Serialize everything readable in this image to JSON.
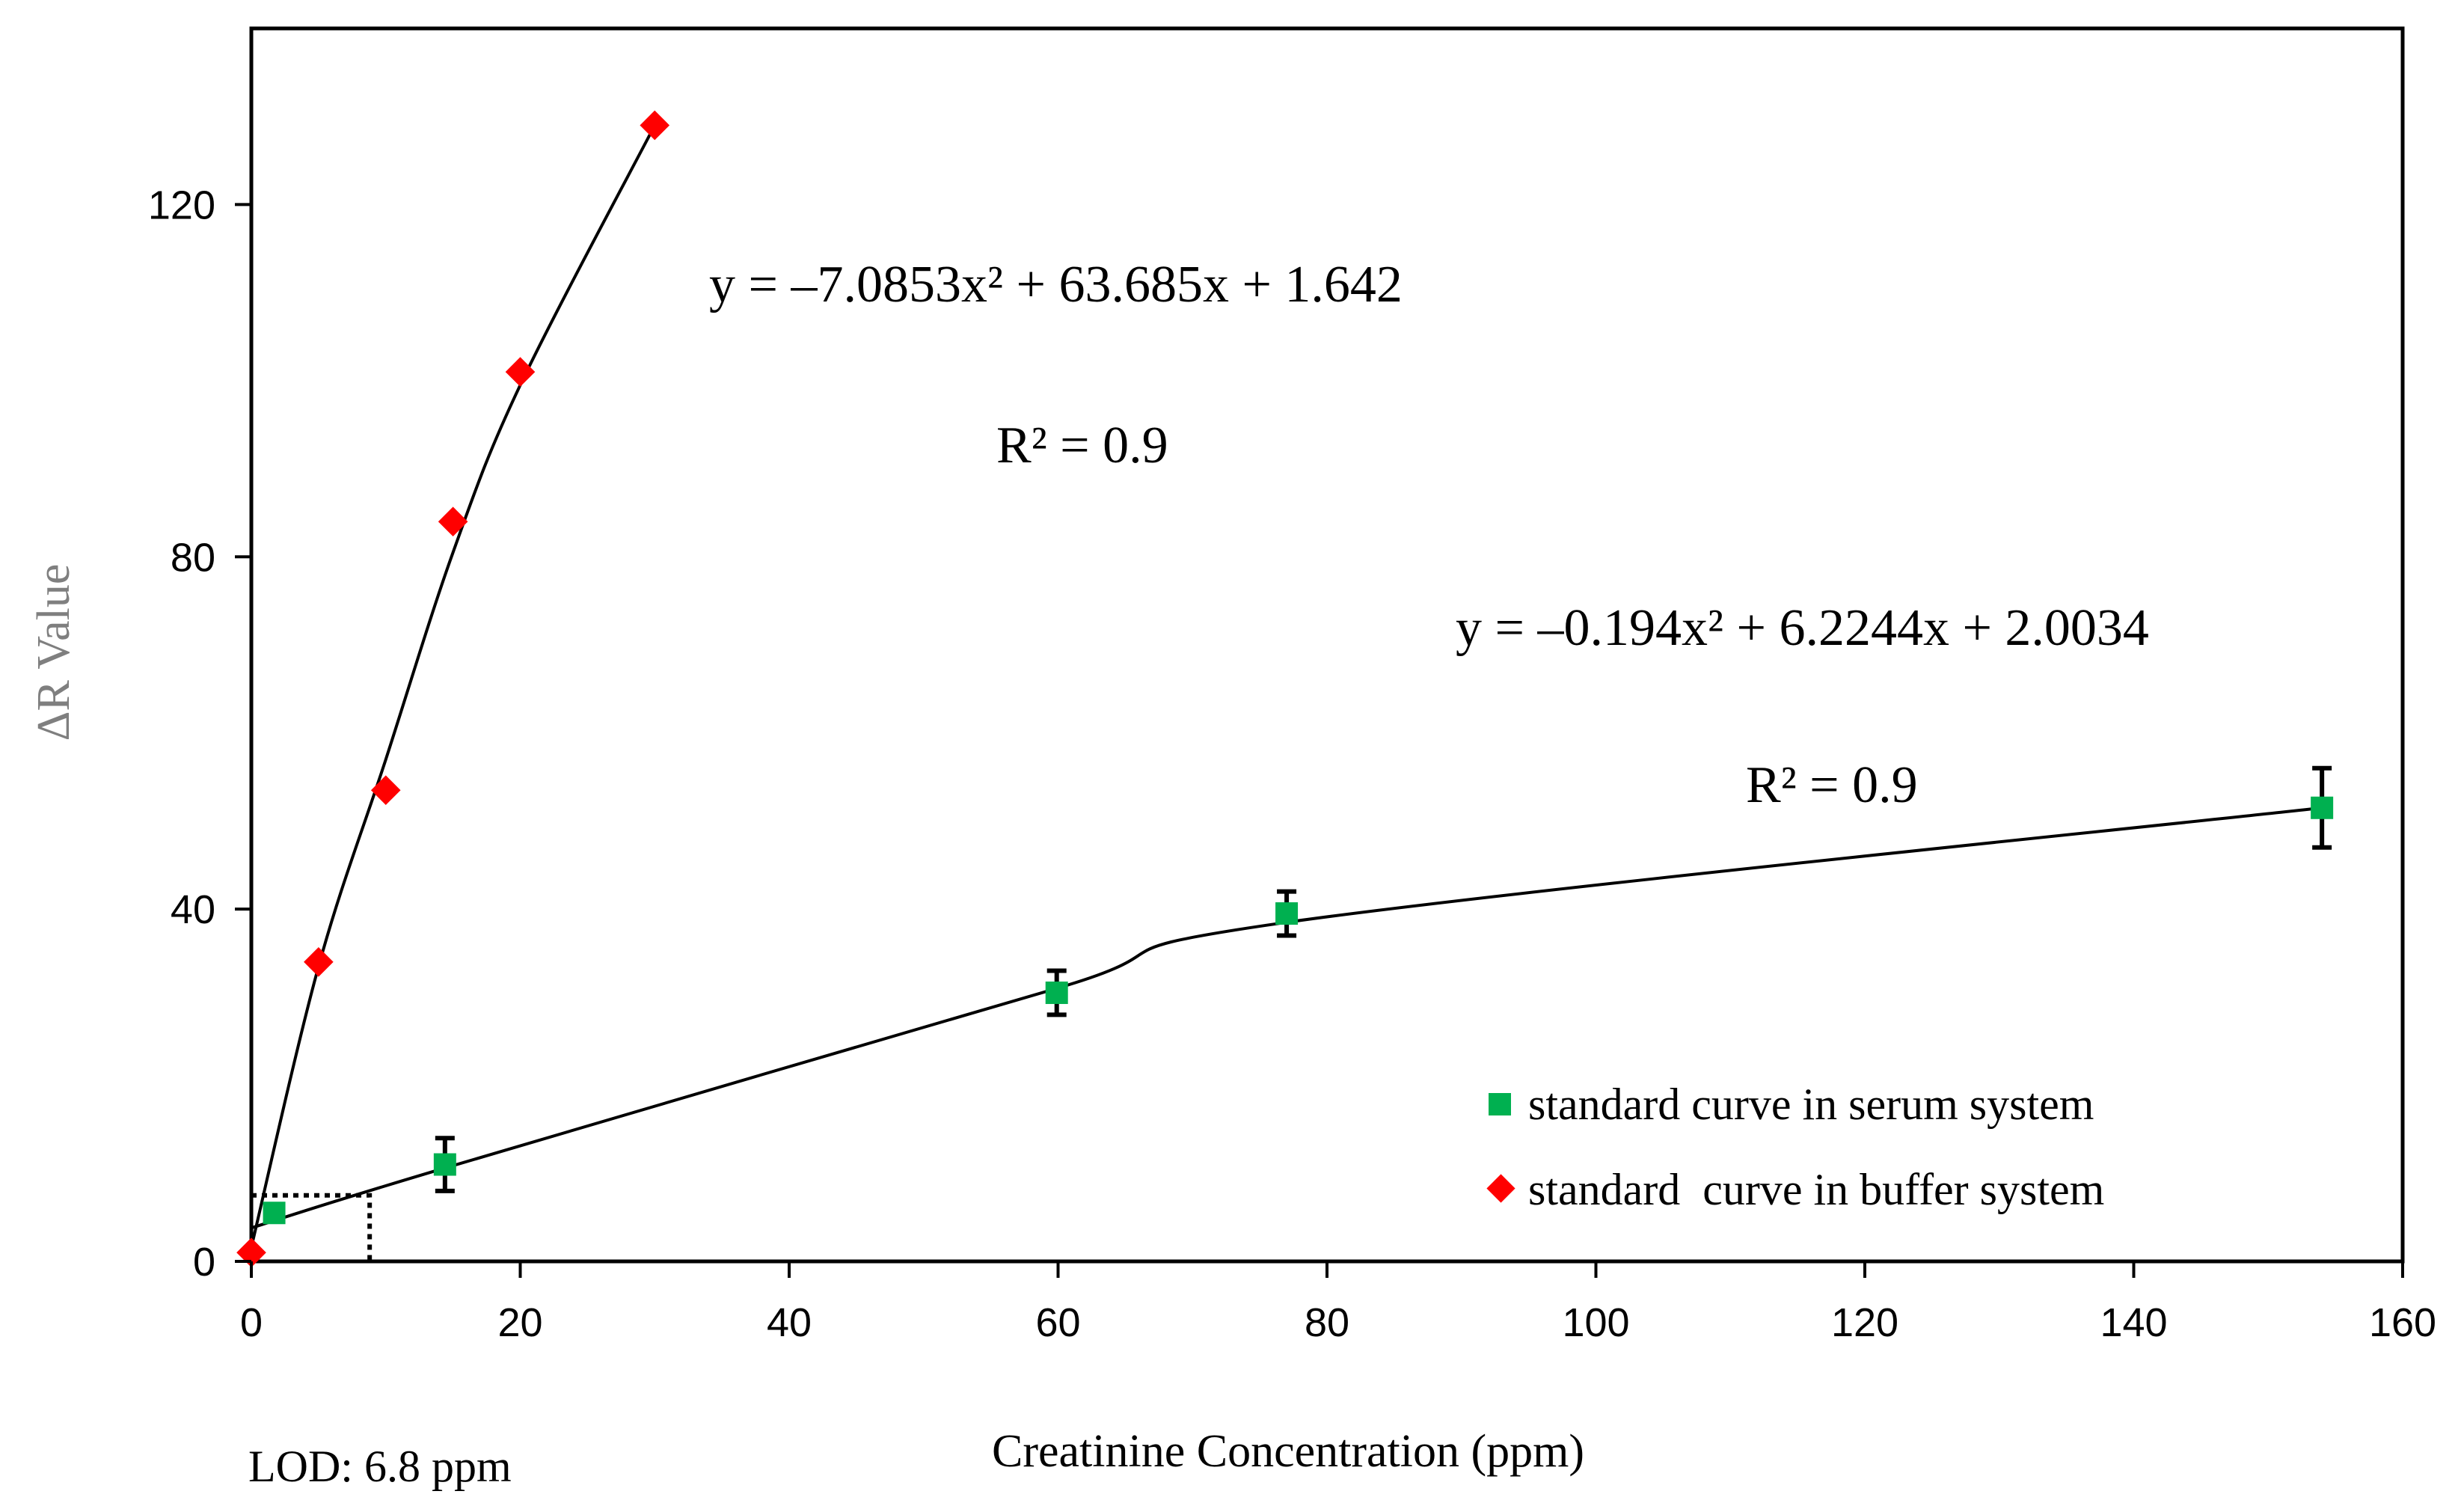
{
  "chart_data": {
    "type": "scatter",
    "title": "",
    "xlabel": "Creatinine Concentration (ppm)",
    "ylabel": "ΔR Value",
    "xlim": [
      0,
      160
    ],
    "ylim": [
      0,
      140
    ],
    "x_ticks": [
      "0",
      "20",
      "40",
      "60",
      "80",
      "100",
      "120",
      "140",
      "160"
    ],
    "y_ticks": [
      "0",
      "40",
      "80",
      "120"
    ],
    "legend_position": "bottom-right",
    "series": [
      {
        "name": "standard curve in serum system",
        "marker": "square",
        "color": "#00b050",
        "x": [
          1.7,
          14.4,
          59.9,
          77.0,
          154.0
        ],
        "y": [
          5.5,
          11.0,
          30.5,
          39.5,
          51.5
        ],
        "error": [
          0,
          3.0,
          2.5,
          2.5,
          4.5
        ],
        "fit": {
          "equation": "y = –0.194x² + 6.2244x + 2.0034",
          "r2": "R² = 0.9",
          "x_range": [
            0,
            154
          ]
        }
      },
      {
        "name": "standard  curve in buffer system",
        "marker": "diamond",
        "color": "#ff0000",
        "x": [
          0,
          5,
          10,
          15,
          20,
          30
        ],
        "y": [
          1.0,
          34.0,
          53.5,
          84.0,
          101.0,
          129.0
        ],
        "fit": {
          "equation": "y = –7.0853x² + 63.685x + 1.642",
          "r2": "R² = 0.9",
          "x_range": [
            0,
            30
          ]
        }
      }
    ],
    "lod_box": {
      "x": 8.8,
      "y": 7.5
    },
    "annotations": [
      "LOD: 6.8 ppm"
    ]
  }
}
